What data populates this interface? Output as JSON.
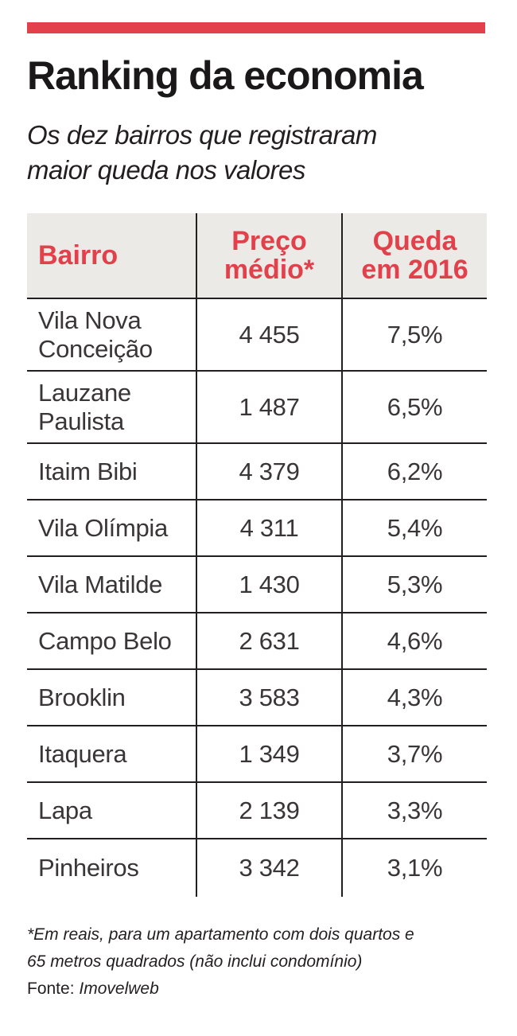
{
  "accent_color": "#e2404a",
  "header_bg_color": "#ebeae6",
  "title": "Ranking da economia",
  "subtitle_lines": [
    "Os dez bairros que registraram",
    "maior queda nos valores"
  ],
  "table": {
    "headers": {
      "bairro": "Bairro",
      "preco_lines": [
        "Preço",
        "médio*"
      ],
      "queda_lines": [
        "Queda",
        "em 2016"
      ]
    },
    "rows": [
      {
        "bairro_lines": [
          "Vila Nova",
          "Conceição"
        ],
        "preco": "4 455",
        "queda": "7,5%"
      },
      {
        "bairro_lines": [
          "Lauzane",
          "Paulista"
        ],
        "preco": "1 487",
        "queda": "6,5%"
      },
      {
        "bairro_lines": [
          "Itaim Bibi"
        ],
        "preco": "4 379",
        "queda": "6,2%"
      },
      {
        "bairro_lines": [
          "Vila Olímpia"
        ],
        "preco": "4 311",
        "queda": "5,4%"
      },
      {
        "bairro_lines": [
          "Vila Matilde"
        ],
        "preco": "1 430",
        "queda": "5,3%"
      },
      {
        "bairro_lines": [
          "Campo Belo"
        ],
        "preco": "2 631",
        "queda": "4,6%"
      },
      {
        "bairro_lines": [
          "Brooklin"
        ],
        "preco": "3 583",
        "queda": "4,3%"
      },
      {
        "bairro_lines": [
          "Itaquera"
        ],
        "preco": "1 349",
        "queda": "3,7%"
      },
      {
        "bairro_lines": [
          "Lapa"
        ],
        "preco": "2 139",
        "queda": "3,3%"
      },
      {
        "bairro_lines": [
          "Pinheiros"
        ],
        "preco": "3 342",
        "queda": "3,1%"
      }
    ]
  },
  "footnote_lines": [
    "*Em reais, para um apartamento com dois quartos e",
    "65 metros quadrados (não inclui condomínio)"
  ],
  "source": {
    "label": "Fonte:",
    "value": "Imovelweb"
  },
  "chart_data": {
    "type": "table",
    "title": "Ranking da economia",
    "subtitle": "Os dez bairros que registraram maior queda nos valores",
    "columns": [
      "Bairro",
      "Preço médio*",
      "Queda em 2016"
    ],
    "rows": [
      [
        "Vila Nova Conceição",
        4455,
        7.5
      ],
      [
        "Lauzane Paulista",
        1487,
        6.5
      ],
      [
        "Itaim Bibi",
        4379,
        6.2
      ],
      [
        "Vila Olímpia",
        4311,
        5.4
      ],
      [
        "Vila Matilde",
        1430,
        5.3
      ],
      [
        "Campo Belo",
        2631,
        4.6
      ],
      [
        "Brooklin",
        3583,
        4.3
      ],
      [
        "Itaquera",
        1349,
        3.7
      ],
      [
        "Lapa",
        2139,
        3.3
      ],
      [
        "Pinheiros",
        3342,
        3.1
      ]
    ]
  }
}
